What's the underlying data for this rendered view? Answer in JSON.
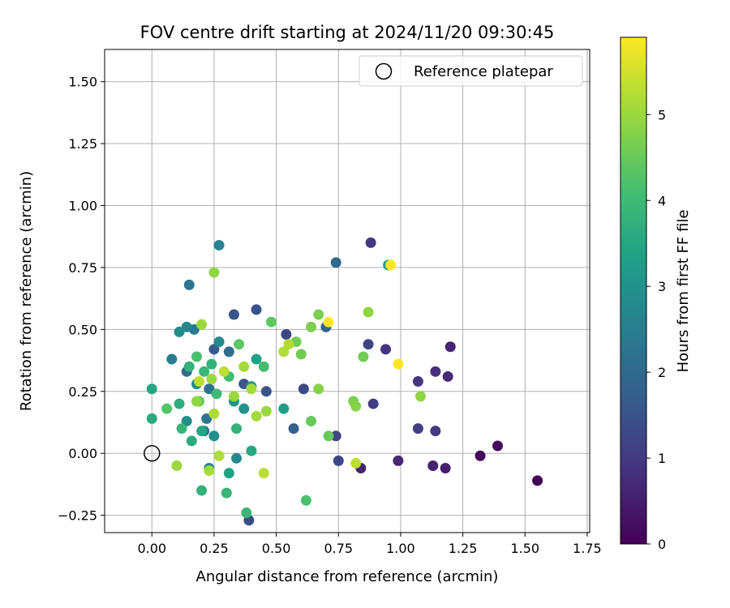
{
  "chart_data": {
    "type": "scatter",
    "title": "FOV centre drift starting at 2024/11/20 09:30:45",
    "xlabel": "Angular distance from reference (arcmin)",
    "ylabel": "Rotation from reference (arcmin)",
    "xlim": [
      -0.19,
      1.76
    ],
    "ylim": [
      -0.32,
      1.63
    ],
    "xticks": [
      "0.00",
      "0.25",
      "0.50",
      "0.75",
      "1.00",
      "1.25",
      "1.50",
      "1.75"
    ],
    "yticks": [
      "−0.25",
      "0.00",
      "0.25",
      "0.50",
      "0.75",
      "1.00",
      "1.25",
      "1.50"
    ],
    "xtick_values": [
      0,
      0.25,
      0.5,
      0.75,
      1.0,
      1.25,
      1.5,
      1.75
    ],
    "ytick_values": [
      -0.25,
      0,
      0.25,
      0.5,
      0.75,
      1.0,
      1.25,
      1.5
    ],
    "grid": true,
    "legend": {
      "placement": "top-right",
      "entries": [
        "Reference platepar"
      ]
    },
    "reference": {
      "x": 0.0,
      "y": 0.0
    },
    "colorbar": {
      "label": "Hours from first FF file",
      "colormap": "viridis",
      "range": [
        0,
        5.9
      ],
      "ticks": [
        "0",
        "1",
        "2",
        "3",
        "4",
        "5"
      ],
      "tick_values": [
        0,
        1,
        2,
        3,
        4,
        5
      ]
    },
    "points": [
      {
        "x": 1.55,
        "y": -0.11,
        "c": 0.05
      },
      {
        "x": 1.32,
        "y": -0.01,
        "c": 0.1
      },
      {
        "x": 1.39,
        "y": 0.03,
        "c": 0.15
      },
      {
        "x": 1.18,
        "y": -0.06,
        "c": 0.5
      },
      {
        "x": 1.13,
        "y": -0.05,
        "c": 0.55
      },
      {
        "x": 0.99,
        "y": -0.03,
        "c": 0.65
      },
      {
        "x": 0.84,
        "y": -0.06,
        "c": 0.6
      },
      {
        "x": 1.2,
        "y": 0.43,
        "c": 0.6
      },
      {
        "x": 1.19,
        "y": 0.31,
        "c": 0.7
      },
      {
        "x": 1.14,
        "y": 0.33,
        "c": 0.8
      },
      {
        "x": 1.07,
        "y": 0.29,
        "c": 0.9
      },
      {
        "x": 1.14,
        "y": 0.09,
        "c": 1.0
      },
      {
        "x": 1.07,
        "y": 0.1,
        "c": 1.1
      },
      {
        "x": 0.94,
        "y": 0.42,
        "c": 0.9
      },
      {
        "x": 0.88,
        "y": 0.85,
        "c": 1.0
      },
      {
        "x": 0.89,
        "y": 0.2,
        "c": 1.1
      },
      {
        "x": 0.87,
        "y": 0.44,
        "c": 1.2
      },
      {
        "x": 0.75,
        "y": -0.03,
        "c": 1.3
      },
      {
        "x": 0.74,
        "y": 0.07,
        "c": 1.2
      },
      {
        "x": 0.61,
        "y": 0.26,
        "c": 1.3
      },
      {
        "x": 0.54,
        "y": 0.48,
        "c": 1.2
      },
      {
        "x": 0.39,
        "y": -0.27,
        "c": 1.4
      },
      {
        "x": 0.42,
        "y": 0.58,
        "c": 1.5
      },
      {
        "x": 0.33,
        "y": 0.56,
        "c": 1.5
      },
      {
        "x": 0.46,
        "y": 0.25,
        "c": 1.5
      },
      {
        "x": 0.37,
        "y": 0.28,
        "c": 1.6
      },
      {
        "x": 0.25,
        "y": 0.42,
        "c": 1.7
      },
      {
        "x": 0.57,
        "y": 0.1,
        "c": 1.8
      },
      {
        "x": 0.7,
        "y": 0.51,
        "c": 1.9
      },
      {
        "x": 0.74,
        "y": 0.77,
        "c": 2.0
      },
      {
        "x": 0.95,
        "y": 0.76,
        "c": 3.3
      },
      {
        "x": 0.31,
        "y": 0.41,
        "c": 2.1
      },
      {
        "x": 0.14,
        "y": 0.33,
        "c": 2.1
      },
      {
        "x": 0.23,
        "y": 0.26,
        "c": 2.2
      },
      {
        "x": 0.15,
        "y": 0.68,
        "c": 2.3
      },
      {
        "x": 0.22,
        "y": 0.14,
        "c": 2.3
      },
      {
        "x": 0.21,
        "y": 0.09,
        "c": 2.2
      },
      {
        "x": 0.17,
        "y": 0.5,
        "c": 2.4
      },
      {
        "x": 0.08,
        "y": 0.38,
        "c": 2.5
      },
      {
        "x": 0.27,
        "y": 0.84,
        "c": 2.6
      },
      {
        "x": 0.14,
        "y": 0.51,
        "c": 2.7
      },
      {
        "x": 0.23,
        "y": -0.06,
        "c": 2.7
      },
      {
        "x": 0.34,
        "y": -0.02,
        "c": 2.7
      },
      {
        "x": 0.27,
        "y": 0.45,
        "c": 2.8
      },
      {
        "x": 0.11,
        "y": 0.49,
        "c": 2.9
      },
      {
        "x": 0.14,
        "y": 0.13,
        "c": 2.9
      },
      {
        "x": 0.18,
        "y": 0.28,
        "c": 2.8
      },
      {
        "x": 0.25,
        "y": 0.07,
        "c": 2.9
      },
      {
        "x": 0.37,
        "y": 0.18,
        "c": 3.0
      },
      {
        "x": 0.33,
        "y": 0.21,
        "c": 3.0
      },
      {
        "x": 0.4,
        "y": 0.27,
        "c": 3.1
      },
      {
        "x": 0.53,
        "y": 0.18,
        "c": 3.3
      },
      {
        "x": 0.42,
        "y": 0.38,
        "c": 3.4
      },
      {
        "x": 0.31,
        "y": -0.08,
        "c": 3.4
      },
      {
        "x": 0.4,
        "y": 0.01,
        "c": 3.5
      },
      {
        "x": 0.0,
        "y": 0.26,
        "c": 3.5
      },
      {
        "x": 0.0,
        "y": 0.14,
        "c": 3.6
      },
      {
        "x": 0.11,
        "y": 0.2,
        "c": 3.7
      },
      {
        "x": 0.16,
        "y": 0.05,
        "c": 3.6
      },
      {
        "x": 0.2,
        "y": 0.09,
        "c": 3.5
      },
      {
        "x": 0.24,
        "y": 0.36,
        "c": 3.8
      },
      {
        "x": 0.34,
        "y": 0.1,
        "c": 3.8
      },
      {
        "x": 0.2,
        "y": -0.15,
        "c": 3.8
      },
      {
        "x": 0.3,
        "y": -0.16,
        "c": 3.9
      },
      {
        "x": 0.38,
        "y": -0.24,
        "c": 3.9
      },
      {
        "x": 0.12,
        "y": 0.1,
        "c": 3.9
      },
      {
        "x": 0.15,
        "y": 0.35,
        "c": 3.8
      },
      {
        "x": 0.21,
        "y": 0.33,
        "c": 3.9
      },
      {
        "x": 0.26,
        "y": 0.24,
        "c": 4.0
      },
      {
        "x": 0.31,
        "y": 0.31,
        "c": 4.1
      },
      {
        "x": 0.45,
        "y": 0.35,
        "c": 4.1
      },
      {
        "x": 0.62,
        "y": -0.19,
        "c": 4.2
      },
      {
        "x": 0.18,
        "y": 0.39,
        "c": 4.2
      },
      {
        "x": 0.06,
        "y": 0.18,
        "c": 4.3
      },
      {
        "x": 0.19,
        "y": 0.21,
        "c": 4.4
      },
      {
        "x": 0.35,
        "y": 0.44,
        "c": 4.4
      },
      {
        "x": 0.48,
        "y": 0.53,
        "c": 4.4
      },
      {
        "x": 0.64,
        "y": 0.13,
        "c": 4.5
      },
      {
        "x": 0.71,
        "y": 0.07,
        "c": 4.5
      },
      {
        "x": 0.6,
        "y": 0.4,
        "c": 4.6
      },
      {
        "x": 0.58,
        "y": 0.45,
        "c": 4.6
      },
      {
        "x": 0.67,
        "y": 0.56,
        "c": 4.7
      },
      {
        "x": 0.64,
        "y": 0.51,
        "c": 4.7
      },
      {
        "x": 0.85,
        "y": 0.39,
        "c": 4.6
      },
      {
        "x": 0.81,
        "y": 0.21,
        "c": 4.7
      },
      {
        "x": 0.82,
        "y": 0.19,
        "c": 4.8
      },
      {
        "x": 0.67,
        "y": 0.26,
        "c": 4.8
      },
      {
        "x": 1.08,
        "y": 0.23,
        "c": 4.9
      },
      {
        "x": 0.87,
        "y": 0.57,
        "c": 4.9
      },
      {
        "x": 0.25,
        "y": 0.73,
        "c": 4.9
      },
      {
        "x": 0.2,
        "y": 0.52,
        "c": 5.0
      },
      {
        "x": 0.18,
        "y": 0.21,
        "c": 4.9
      },
      {
        "x": 0.24,
        "y": 0.3,
        "c": 5.0
      },
      {
        "x": 0.33,
        "y": 0.23,
        "c": 5.0
      },
      {
        "x": 0.37,
        "y": 0.35,
        "c": 5.1
      },
      {
        "x": 0.4,
        "y": 0.26,
        "c": 5.1
      },
      {
        "x": 0.42,
        "y": 0.15,
        "c": 5.1
      },
      {
        "x": 0.46,
        "y": 0.17,
        "c": 5.0
      },
      {
        "x": 0.53,
        "y": 0.41,
        "c": 5.2
      },
      {
        "x": 0.55,
        "y": 0.44,
        "c": 5.2
      },
      {
        "x": 0.23,
        "y": -0.07,
        "c": 5.1
      },
      {
        "x": 0.27,
        "y": -0.01,
        "c": 5.2
      },
      {
        "x": 0.1,
        "y": -0.05,
        "c": 5.0
      },
      {
        "x": 0.19,
        "y": 0.29,
        "c": 5.3
      },
      {
        "x": 0.25,
        "y": 0.16,
        "c": 5.2
      },
      {
        "x": 0.29,
        "y": 0.33,
        "c": 5.3
      },
      {
        "x": 0.45,
        "y": -0.08,
        "c": 5.3
      },
      {
        "x": 0.82,
        "y": -0.04,
        "c": 5.3
      },
      {
        "x": 0.71,
        "y": 0.53,
        "c": 5.9
      },
      {
        "x": 0.96,
        "y": 0.76,
        "c": 5.9
      },
      {
        "x": 0.99,
        "y": 0.36,
        "c": 5.9
      }
    ]
  }
}
